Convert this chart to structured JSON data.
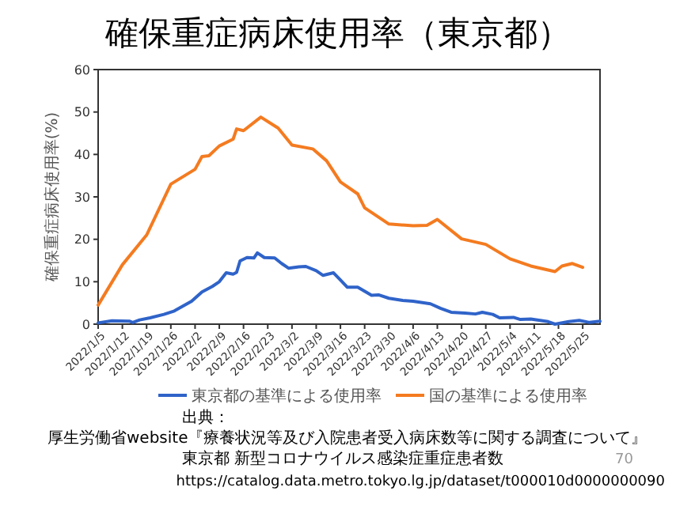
{
  "chart_data": {
    "type": "line",
    "title": "確保重症病床使用率（東京都）",
    "ylabel": "確保重症病床使用率(%)",
    "xlim": [
      "2022-01-05",
      "2022-05-30"
    ],
    "xticks": [
      {
        "value": "2022-01-05",
        "label": "2022/1/5"
      },
      {
        "value": "2022-01-12",
        "label": "2022/1/12"
      },
      {
        "value": "2022-01-19",
        "label": "2022/1/19"
      },
      {
        "value": "2022-01-26",
        "label": "2022/1/26"
      },
      {
        "value": "2022-02-02",
        "label": "2022/2/2"
      },
      {
        "value": "2022-02-09",
        "label": "2022/2/9"
      },
      {
        "value": "2022-02-16",
        "label": "2022/2/16"
      },
      {
        "value": "2022-02-23",
        "label": "2022/2/23"
      },
      {
        "value": "2022-03-02",
        "label": "2022/3/2"
      },
      {
        "value": "2022-03-09",
        "label": "2022/3/9"
      },
      {
        "value": "2022-03-16",
        "label": "2022/3/16"
      },
      {
        "value": "2022-03-23",
        "label": "2022/3/23"
      },
      {
        "value": "2022-03-30",
        "label": "2022/3/30"
      },
      {
        "value": "2022-04-06",
        "label": "2022/4/6"
      },
      {
        "value": "2022-04-13",
        "label": "2022/4/13"
      },
      {
        "value": "2022-04-20",
        "label": "2022/4/20"
      },
      {
        "value": "2022-04-27",
        "label": "2022/4/27"
      },
      {
        "value": "2022-05-04",
        "label": "2022/5/4"
      },
      {
        "value": "2022-05-11",
        "label": "2022/5/11"
      },
      {
        "value": "2022-05-18",
        "label": "2022/5/18"
      },
      {
        "value": "2022-05-25",
        "label": "2022/5/25"
      }
    ],
    "ylim": [
      0,
      60
    ],
    "yticks": [
      0,
      10,
      20,
      30,
      40,
      50,
      60
    ],
    "grid": false,
    "legend": "bottom",
    "marker": "none",
    "line_style": "solid",
    "series": [
      {
        "name": "東京都の基準による使用率",
        "color": "#2f63c9",
        "x": [
          "2022-01-05",
          "2022-01-09",
          "2022-01-14",
          "2022-01-15",
          "2022-01-17",
          "2022-01-20",
          "2022-01-24",
          "2022-01-27",
          "2022-02-01",
          "2022-02-04",
          "2022-02-07",
          "2022-02-09",
          "2022-02-11",
          "2022-02-13",
          "2022-02-14",
          "2022-02-15",
          "2022-02-17",
          "2022-02-19",
          "2022-02-20",
          "2022-02-22",
          "2022-02-25",
          "2022-02-27",
          "2022-03-01",
          "2022-03-04",
          "2022-03-06",
          "2022-03-09",
          "2022-03-11",
          "2022-03-14",
          "2022-03-16",
          "2022-03-18",
          "2022-03-21",
          "2022-03-25",
          "2022-03-27",
          "2022-03-30",
          "2022-04-03",
          "2022-04-06",
          "2022-04-11",
          "2022-04-14",
          "2022-04-17",
          "2022-04-21",
          "2022-04-24",
          "2022-04-26",
          "2022-04-29",
          "2022-05-01",
          "2022-05-05",
          "2022-05-07",
          "2022-05-10",
          "2022-05-15",
          "2022-05-17",
          "2022-05-21",
          "2022-05-24",
          "2022-05-27",
          "2022-05-30"
        ],
        "values": [
          0.3,
          0.8,
          0.7,
          0.4,
          1.0,
          1.5,
          2.3,
          3.1,
          5.4,
          7.6,
          8.9,
          10,
          12.1,
          11.8,
          12.2,
          14.9,
          15.7,
          15.6,
          16.8,
          15.7,
          15.6,
          14.3,
          13.2,
          13.5,
          13.6,
          12.6,
          11.5,
          12.1,
          10.4,
          8.7,
          8.7,
          6.8,
          6.9,
          6.1,
          5.6,
          5.4,
          4.8,
          3.7,
          2.8,
          2.6,
          2.4,
          2.8,
          2.3,
          1.5,
          1.6,
          1.1,
          1.2,
          0.6,
          0,
          0.6,
          0.9,
          0.4,
          0.7
        ]
      },
      {
        "name": "国の基準による使用率",
        "color": "#f47b20",
        "x": [
          "2022-01-05",
          "2022-01-12",
          "2022-01-19",
          "2022-01-26",
          "2022-02-02",
          "2022-02-04",
          "2022-02-06",
          "2022-02-09",
          "2022-02-13",
          "2022-02-14",
          "2022-02-16",
          "2022-02-21",
          "2022-02-26",
          "2022-03-02",
          "2022-03-08",
          "2022-03-12",
          "2022-03-16",
          "2022-03-21",
          "2022-03-23",
          "2022-03-30",
          "2022-04-06",
          "2022-04-10",
          "2022-04-13",
          "2022-04-20",
          "2022-04-27",
          "2022-05-04",
          "2022-05-10",
          "2022-05-17",
          "2022-05-19",
          "2022-05-22",
          "2022-05-25"
        ],
        "values": [
          4.5,
          14,
          21,
          33,
          36.5,
          39.5,
          39.7,
          42,
          43.6,
          46,
          45.6,
          48.8,
          46.2,
          42.2,
          41.3,
          38.5,
          33.5,
          30.7,
          27.4,
          23.6,
          23.2,
          23.3,
          24.7,
          20.1,
          18.8,
          15.4,
          13.7,
          12.4,
          13.7,
          14.3,
          13.4
        ]
      }
    ],
    "annotations": [
      "出典：",
      "厚生労働省website『療養状況等及び入院患者受入病床数等に関する調査について』",
      "東京都 新型コロナウイルス感染症重症患者数",
      "https://catalog.data.metro.tokyo.lg.jp/dataset/t000010d0000000090",
      "70"
    ]
  }
}
